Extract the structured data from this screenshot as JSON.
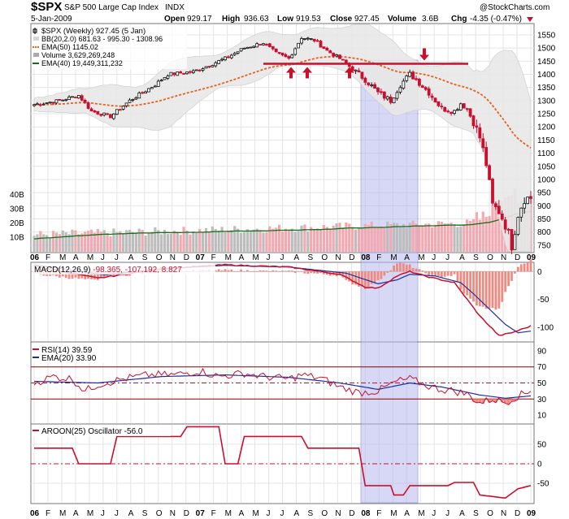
{
  "header": {
    "symbol": "$SPX",
    "name": "S&P 500 Large Cap Index",
    "exchange": "INDX",
    "date": "5-Jan-2009",
    "open_label": "Open",
    "open": "929.17",
    "high_label": "High",
    "high": "936.63",
    "low_label": "Low",
    "low": "919.53",
    "close_label": "Close",
    "close": "927.45",
    "volume_label": "Volume",
    "volume": "3.6B",
    "chg_label": "Chg",
    "chg": "-4.35 (-0.47%)",
    "watermark": "@StockCharts.com"
  },
  "legend": {
    "price": "$SPX (Weekly) 927.45 (5 Jan)",
    "bb": "BB(20,2.0) 681.63 - 995.30 - 1308.96",
    "ema50": "EMA(50) 1145.02",
    "volume": "Volume 3,629,269,248",
    "ema40": "EMA(40) 19,449,311,232",
    "macd_name": "MACD(12,26,9)",
    "macd_vals": "-98.365, -107.192, 8.827",
    "rsi": "RSI(14) 39.59",
    "rsi_ema": "EMA(20) 33.90",
    "aroon": "AROON(25) Oscillator -56.0"
  },
  "colors": {
    "up": "#111111",
    "down": "#c8102e",
    "bb_fill": "#e8e8e8",
    "ema50": "#e8601c",
    "ema40": "#1a6e1a",
    "highlight": "#b8b8f0",
    "resistance": "#c8102e",
    "macd_line": "#c8102e",
    "macd_signal": "#1a2fa0",
    "hist": "#f08a80"
  },
  "chart_data": {
    "type": "candlestick",
    "title": "$SPX S&P 500 Large Cap Index (Weekly)",
    "period": "Jan 2006 - Jan 2009",
    "x_tick_labels": [
      "06",
      "F",
      "M",
      "A",
      "M",
      "J",
      "J",
      "A",
      "S",
      "O",
      "N",
      "D",
      "07",
      "F",
      "M",
      "A",
      "M",
      "J",
      "J",
      "A",
      "S",
      "O",
      "N",
      "D",
      "08",
      "F",
      "M",
      "A",
      "M",
      "J",
      "J",
      "A",
      "S",
      "O",
      "N",
      "D",
      "09"
    ],
    "price_axis": [
      "1550",
      "1500",
      "1450",
      "1400",
      "1350",
      "1300",
      "1250",
      "1200",
      "1150",
      "1100",
      "1050",
      "1000",
      "950",
      "900",
      "850",
      "800",
      "750"
    ],
    "ylim": [
      725,
      1590
    ],
    "volume_axis": [
      "40B",
      "30B",
      "20B",
      "10B"
    ],
    "resistance_level": 1440,
    "highlight_period": "Jan 2008 - May 2008",
    "arrows": "Four up-arrows under the 1440 line in mid-2007 and early 2008; one down-arrow on the line in May 2008",
    "weekly_close_anchors": [
      [
        0,
        1285
      ],
      [
        8,
        1300
      ],
      [
        14,
        1320
      ],
      [
        18,
        1260
      ],
      [
        24,
        1240
      ],
      [
        30,
        1300
      ],
      [
        38,
        1360
      ],
      [
        42,
        1400
      ],
      [
        50,
        1410
      ],
      [
        56,
        1440
      ],
      [
        60,
        1460
      ],
      [
        66,
        1500
      ],
      [
        72,
        1520
      ],
      [
        76,
        1480
      ],
      [
        80,
        1460
      ],
      [
        84,
        1540
      ],
      [
        88,
        1530
      ],
      [
        92,
        1490
      ],
      [
        96,
        1460
      ],
      [
        100,
        1420
      ],
      [
        104,
        1380
      ],
      [
        108,
        1330
      ],
      [
        112,
        1300
      ],
      [
        115,
        1360
      ],
      [
        118,
        1400
      ],
      [
        120,
        1380
      ],
      [
        124,
        1330
      ],
      [
        128,
        1270
      ],
      [
        132,
        1260
      ],
      [
        134,
        1290
      ],
      [
        136,
        1270
      ],
      [
        140,
        1160
      ],
      [
        142,
        1060
      ],
      [
        144,
        900
      ],
      [
        146,
        880
      ],
      [
        148,
        830
      ],
      [
        150,
        750
      ],
      [
        152,
        870
      ],
      [
        154,
        930
      ],
      [
        156,
        927
      ]
    ],
    "macd_axis": [
      "0",
      "-50",
      "-100"
    ],
    "macd_ylim": [
      -125,
      15
    ],
    "macd_anchors": [
      [
        0,
        10
      ],
      [
        20,
        -12
      ],
      [
        40,
        5
      ],
      [
        60,
        12
      ],
      [
        80,
        8
      ],
      [
        96,
        -5
      ],
      [
        104,
        -28
      ],
      [
        108,
        -30
      ],
      [
        114,
        -8
      ],
      [
        118,
        0
      ],
      [
        124,
        -10
      ],
      [
        132,
        -20
      ],
      [
        136,
        -50
      ],
      [
        140,
        -80
      ],
      [
        146,
        -115
      ],
      [
        150,
        -110
      ],
      [
        156,
        -98
      ]
    ],
    "macd_signal_anchors": [
      [
        0,
        12
      ],
      [
        22,
        -6
      ],
      [
        40,
        5
      ],
      [
        60,
        11
      ],
      [
        80,
        8
      ],
      [
        98,
        -3
      ],
      [
        108,
        -22
      ],
      [
        114,
        -15
      ],
      [
        118,
        -5
      ],
      [
        126,
        -8
      ],
      [
        134,
        -20
      ],
      [
        138,
        -40
      ],
      [
        142,
        -62
      ],
      [
        148,
        -95
      ],
      [
        152,
        -110
      ],
      [
        156,
        -107
      ]
    ],
    "rsi_axis": [
      "90",
      "70",
      "50",
      "30",
      "10"
    ],
    "rsi_levels": [
      70,
      50,
      30
    ],
    "rsi_anchors": [
      [
        0,
        50
      ],
      [
        6,
        58
      ],
      [
        12,
        55
      ],
      [
        16,
        40
      ],
      [
        20,
        48
      ],
      [
        28,
        55
      ],
      [
        36,
        60
      ],
      [
        44,
        60
      ],
      [
        52,
        65
      ],
      [
        58,
        58
      ],
      [
        66,
        62
      ],
      [
        72,
        58
      ],
      [
        80,
        55
      ],
      [
        84,
        60
      ],
      [
        90,
        56
      ],
      [
        96,
        45
      ],
      [
        102,
        38
      ],
      [
        108,
        40
      ],
      [
        114,
        52
      ],
      [
        118,
        55
      ],
      [
        124,
        46
      ],
      [
        128,
        42
      ],
      [
        132,
        40
      ],
      [
        136,
        36
      ],
      [
        140,
        25
      ],
      [
        144,
        30
      ],
      [
        148,
        26
      ],
      [
        152,
        34
      ],
      [
        156,
        39.59
      ]
    ],
    "rsi_ema_anchors": [
      [
        0,
        52
      ],
      [
        20,
        50
      ],
      [
        40,
        58
      ],
      [
        60,
        60
      ],
      [
        80,
        57
      ],
      [
        96,
        50
      ],
      [
        108,
        42
      ],
      [
        118,
        50
      ],
      [
        128,
        45
      ],
      [
        140,
        35
      ],
      [
        148,
        31
      ],
      [
        156,
        33.9
      ]
    ],
    "aroon_axis": [
      "50",
      "0",
      "-50"
    ],
    "aroon_ylim": [
      -100,
      100
    ],
    "aroon_anchors": [
      [
        0,
        40
      ],
      [
        12,
        40
      ],
      [
        14,
        0
      ],
      [
        24,
        0
      ],
      [
        26,
        70
      ],
      [
        46,
        70
      ],
      [
        48,
        95
      ],
      [
        58,
        95
      ],
      [
        60,
        0
      ],
      [
        64,
        0
      ],
      [
        66,
        70
      ],
      [
        84,
        70
      ],
      [
        86,
        40
      ],
      [
        102,
        40
      ],
      [
        104,
        -56
      ],
      [
        112,
        -56
      ],
      [
        113,
        -80
      ],
      [
        116,
        -80
      ],
      [
        118,
        -56
      ],
      [
        130,
        -56
      ],
      [
        132,
        -48
      ],
      [
        138,
        -48
      ],
      [
        140,
        -80
      ],
      [
        148,
        -88
      ],
      [
        152,
        -64
      ],
      [
        156,
        -56
      ]
    ]
  }
}
